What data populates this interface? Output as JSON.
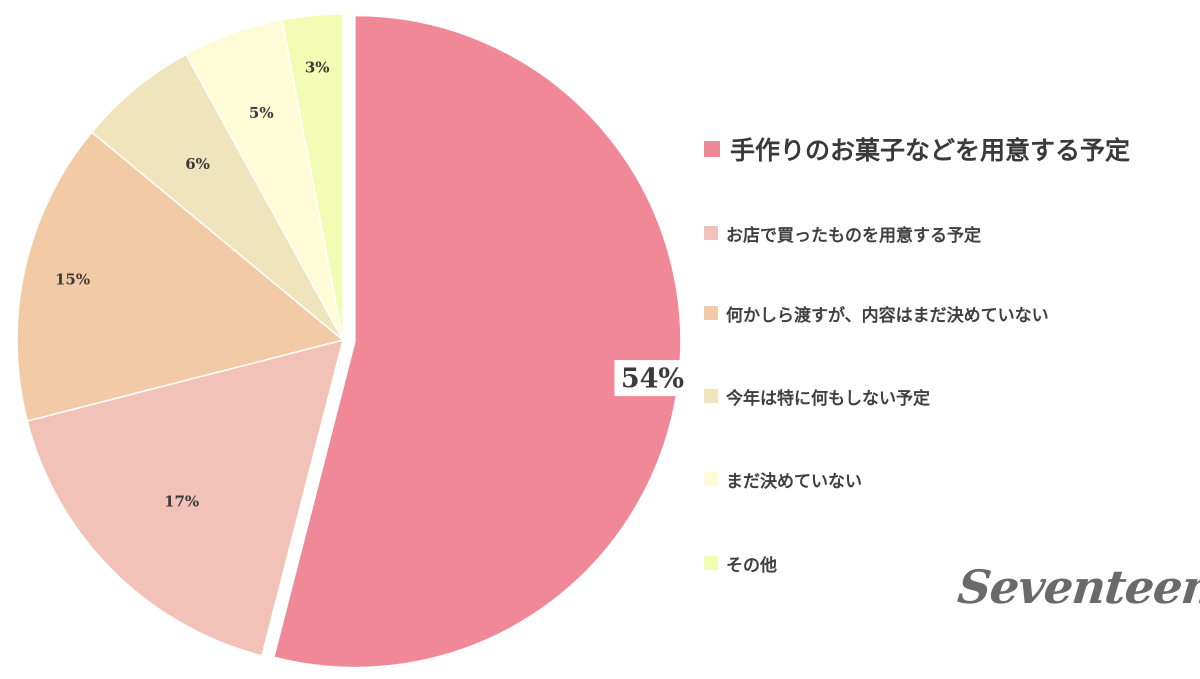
{
  "chart_data": {
    "type": "pie",
    "categories": [
      "手作りのお菓子などを用意する予定",
      "お店で買ったものを用意する予定",
      "何かしら渡すが、内容はまだ決めていない",
      "今年は特に何もしない予定",
      "まだ決めていない",
      "その他"
    ],
    "values": [
      54,
      17,
      15,
      6,
      5,
      3
    ],
    "value_labels": [
      "54%",
      "17%",
      "15%",
      "6%",
      "5%",
      "3%"
    ],
    "colors": [
      "#f08898",
      "#f2c2b8",
      "#f2cba6",
      "#f0e4bc",
      "#fdfcd6",
      "#f3fcb4"
    ],
    "legend_position": "right",
    "exploded_slice": "手作りのお菓子などを用意する予定"
  },
  "logo": {
    "text": "Seventeen"
  }
}
